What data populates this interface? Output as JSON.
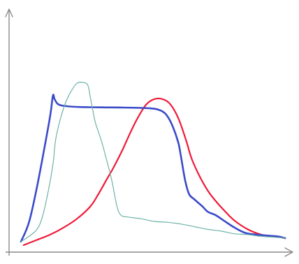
{
  "chart_data": {
    "type": "line",
    "title": "",
    "xlabel": "",
    "ylabel": "",
    "grid": false,
    "legend": "none",
    "xlim": [
      0,
      100
    ],
    "ylim": [
      0,
      100
    ],
    "series": [
      {
        "color": "#f01a3a",
        "width": 2.2,
        "points": [
          [
            1,
            -2
          ],
          [
            6,
            1
          ],
          [
            11,
            4
          ],
          [
            16,
            8
          ],
          [
            21,
            13
          ],
          [
            26,
            20
          ],
          [
            29,
            27
          ],
          [
            32,
            35
          ],
          [
            35,
            43
          ],
          [
            38,
            52
          ],
          [
            41,
            62
          ],
          [
            44,
            71
          ],
          [
            47,
            78
          ],
          [
            50,
            81
          ],
          [
            53,
            81
          ],
          [
            56,
            78
          ],
          [
            59,
            70
          ],
          [
            62,
            57
          ],
          [
            64,
            47
          ],
          [
            67,
            37
          ],
          [
            70,
            29
          ],
          [
            73,
            23
          ],
          [
            76,
            18
          ],
          [
            80,
            12
          ],
          [
            85,
            7
          ],
          [
            90,
            4
          ],
          [
            95,
            3
          ],
          [
            99,
            2
          ]
        ]
      },
      {
        "color": "#3b4bc9",
        "width": 2.6,
        "points": [
          [
            0,
            0
          ],
          [
            3,
            11
          ],
          [
            6,
            31
          ],
          [
            9,
            55
          ],
          [
            11,
            72
          ],
          [
            12,
            83
          ],
          [
            12.6,
            81
          ],
          [
            14,
            78
          ],
          [
            17,
            77
          ],
          [
            22,
            76.5
          ],
          [
            30,
            76.3
          ],
          [
            38,
            76.2
          ],
          [
            45,
            76
          ],
          [
            50,
            75.5
          ],
          [
            53,
            74
          ],
          [
            55,
            71
          ],
          [
            57,
            65
          ],
          [
            59,
            56
          ],
          [
            60,
            48
          ],
          [
            61.5,
            35
          ],
          [
            63,
            27
          ],
          [
            65,
            24
          ],
          [
            68,
            20
          ],
          [
            70,
            17
          ],
          [
            73,
            15
          ],
          [
            76,
            12
          ],
          [
            80,
            8
          ],
          [
            84,
            5
          ],
          [
            88,
            4
          ],
          [
            92,
            3.5
          ],
          [
            96,
            3
          ],
          [
            99,
            2
          ]
        ]
      },
      {
        "color": "#6db3a8",
        "width": 1.2,
        "points": [
          [
            0,
            0
          ],
          [
            3,
            3
          ],
          [
            6,
            7
          ],
          [
            8,
            14
          ],
          [
            10,
            27
          ],
          [
            12,
            44
          ],
          [
            13,
            58
          ],
          [
            15,
            71
          ],
          [
            17,
            80
          ],
          [
            19,
            86
          ],
          [
            21,
            90
          ],
          [
            23,
            90.5
          ],
          [
            25,
            89
          ],
          [
            26,
            82
          ],
          [
            27,
            74
          ],
          [
            28,
            67
          ],
          [
            30,
            58
          ],
          [
            32,
            47
          ],
          [
            34,
            35
          ],
          [
            36,
            20
          ],
          [
            37.5,
            15
          ],
          [
            40,
            14
          ],
          [
            45,
            13
          ],
          [
            50,
            11.5
          ],
          [
            55,
            11
          ],
          [
            60,
            10
          ],
          [
            65,
            8.5
          ],
          [
            70,
            7
          ],
          [
            75,
            6
          ],
          [
            80,
            4.5
          ],
          [
            85,
            4
          ],
          [
            90,
            3
          ],
          [
            95,
            2.5
          ],
          [
            99,
            2
          ]
        ]
      }
    ]
  }
}
